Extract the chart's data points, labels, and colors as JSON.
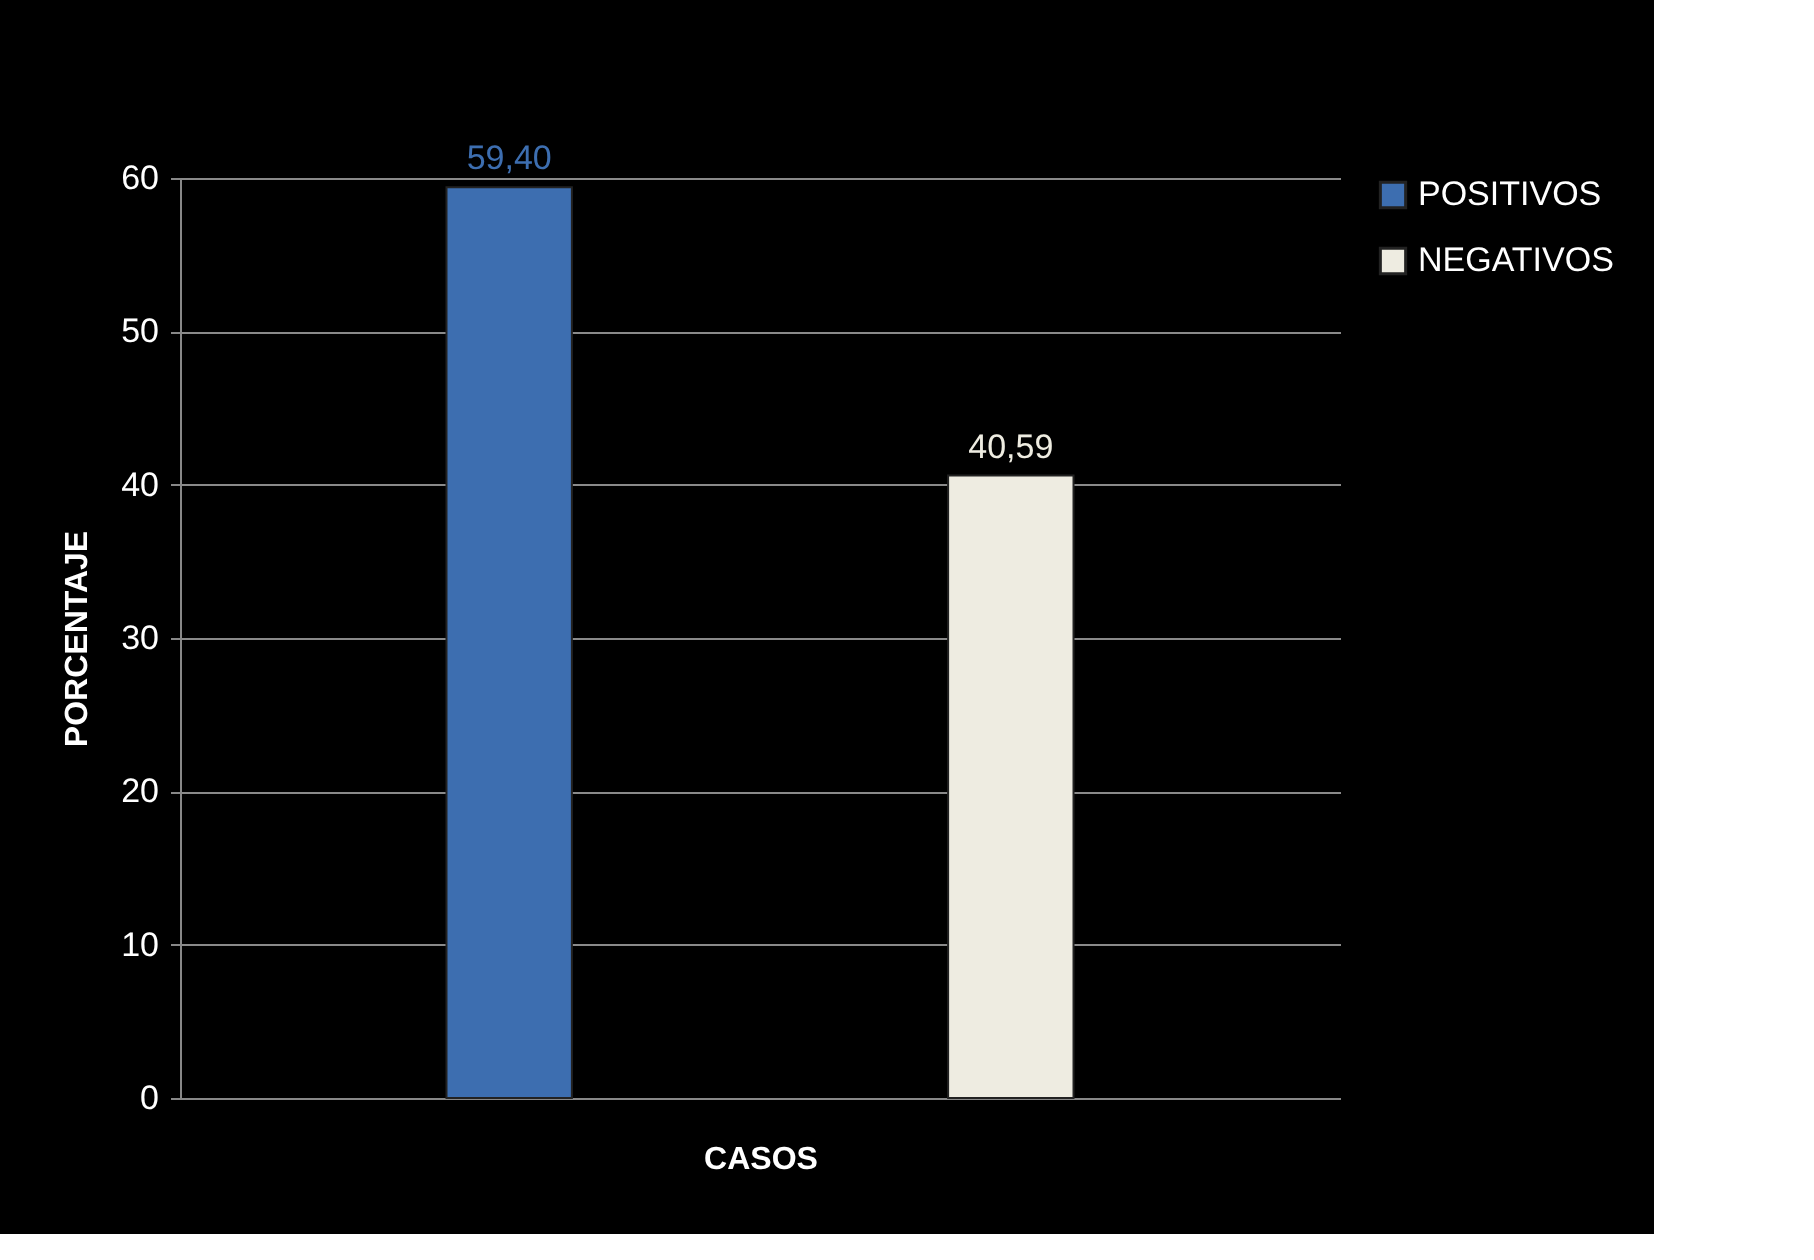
{
  "chart_data": {
    "type": "bar",
    "xlabel": "CASOS",
    "ylabel": "PORCENTAJE",
    "categories": [
      null
    ],
    "series": [
      {
        "name": "POSITIVOS",
        "color": "#3d6eb0",
        "values": [
          59.4
        ],
        "value_labels": [
          "59,40"
        ]
      },
      {
        "name": "NEGATIVOS",
        "color": "#eeece1",
        "values": [
          40.59
        ],
        "value_labels": [
          "40,59"
        ]
      }
    ],
    "ylim": [
      0,
      60
    ],
    "yticks": [
      0,
      10,
      20,
      30,
      40,
      50,
      60
    ],
    "grid": "y",
    "legend": "right"
  }
}
